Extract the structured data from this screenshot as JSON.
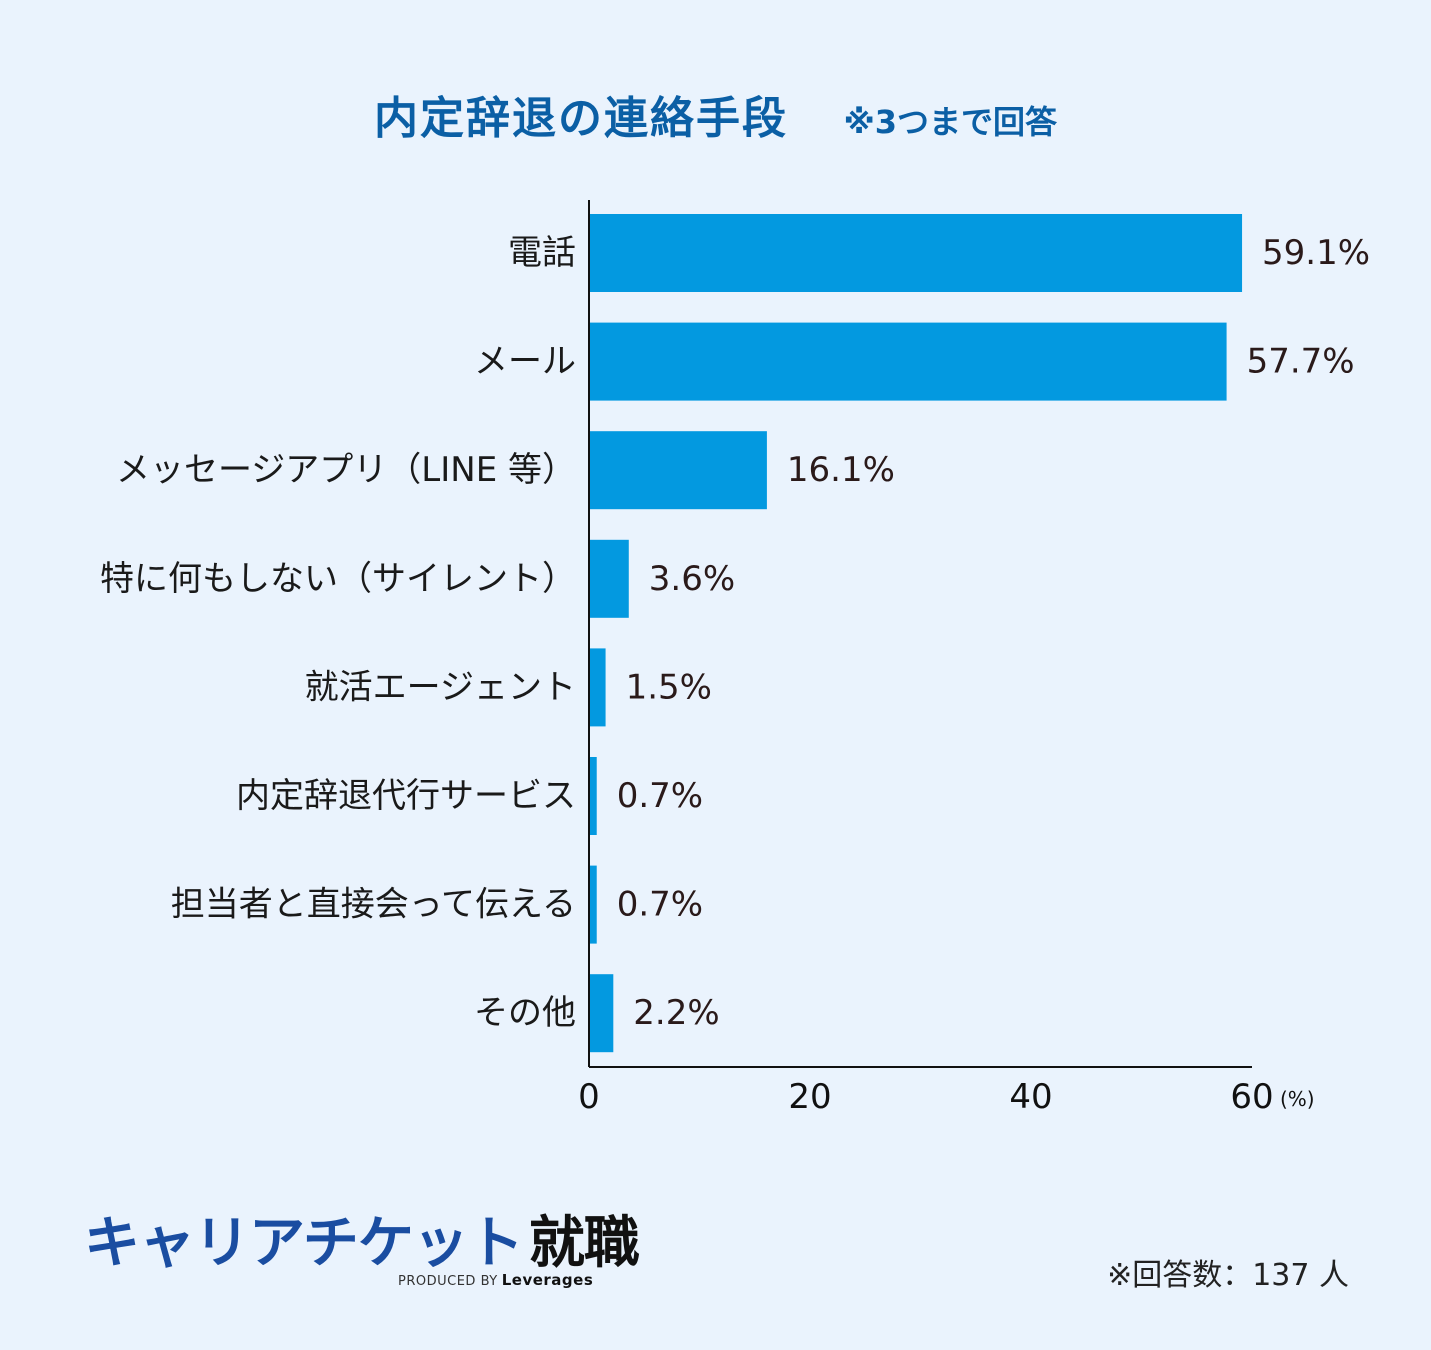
{
  "title": "内定辞退の連絡手段",
  "subtitle": "※3つまで回答",
  "chart_data": {
    "type": "bar",
    "orientation": "horizontal",
    "categories": [
      "電話",
      "メール",
      "メッセージアプリ（LINE 等）",
      "特に何もしない（サイレント）",
      "就活エージェント",
      "内定辞退代行サービス",
      "担当者と直接会って伝える",
      "その他"
    ],
    "values": [
      59.1,
      57.7,
      16.1,
      3.6,
      1.5,
      0.7,
      0.7,
      2.2
    ],
    "value_labels": [
      "59.1%",
      "57.7%",
      "16.1%",
      "3.6%",
      "1.5%",
      "0.7%",
      "0.7%",
      "2.2%"
    ],
    "x_ticks": [
      "0",
      "20",
      "40",
      "60"
    ],
    "x_unit": "(%)",
    "xlim": [
      0,
      60
    ],
    "grid": false,
    "bar_color": "#0399e0"
  },
  "logo": {
    "name": "キャリアチケット",
    "name_kanji": "就職",
    "produced_by": "PRODUCED BY",
    "brand": "Leverages"
  },
  "footnote": "※回答数：137 人"
}
